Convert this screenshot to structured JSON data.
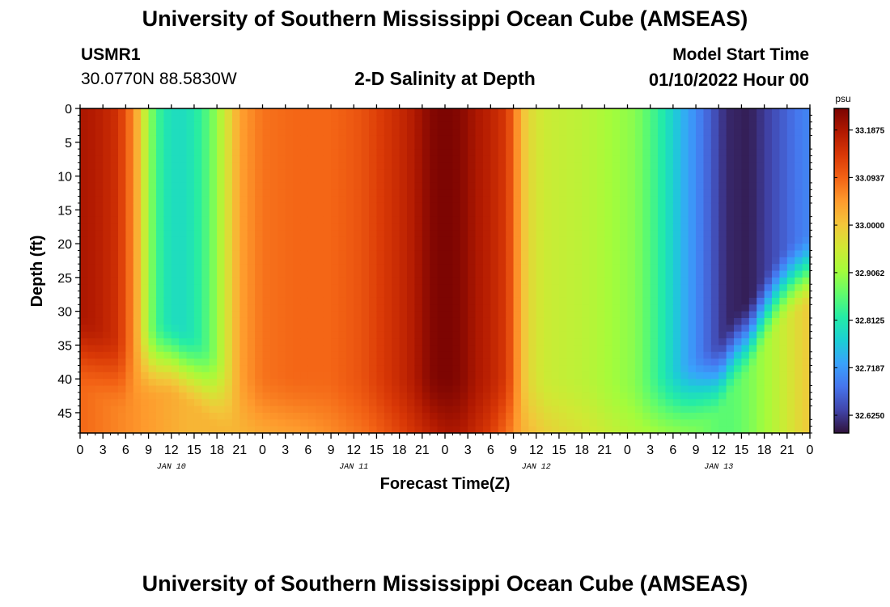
{
  "page": {
    "title": "University of Southern Mississippi Ocean Cube (AMSEAS)",
    "repeated_title": "University of Southern Mississippi Ocean Cube (AMSEAS)",
    "station_id": "USMR1",
    "station_coords": "30.0770N  88.5830W",
    "subtitle": "2-D Salinity at Depth",
    "start_label": "Model Start Time",
    "start_value": "01/10/2022 Hour 00"
  },
  "colors": {
    "frame": "#000000",
    "background": "#ffffff",
    "colormap": [
      "#30123b",
      "#4145ab",
      "#4675ed",
      "#39a2fc",
      "#1bcfd4",
      "#24eca6",
      "#61fc6c",
      "#a4fc3b",
      "#d1e834",
      "#f3c63a",
      "#fe9b2d",
      "#f36315",
      "#d93806",
      "#b11901",
      "#7a0402"
    ]
  },
  "chart_data": {
    "type": "heatmap",
    "title": "2-D Salinity at Depth",
    "xlabel": "Forecast Time(Z)",
    "ylabel": "Depth (ft)",
    "x_ticks": [
      "0",
      "3",
      "6",
      "9",
      "12",
      "15",
      "18",
      "21",
      "0",
      "3",
      "6",
      "9",
      "12",
      "15",
      "18",
      "21",
      "0",
      "3",
      "6",
      "9",
      "12",
      "15",
      "18",
      "21",
      "0",
      "3",
      "6",
      "9",
      "12",
      "15",
      "18",
      "21",
      "0"
    ],
    "x_hours": [
      0,
      3,
      6,
      9,
      12,
      15,
      18,
      21,
      24,
      27,
      30,
      33,
      36,
      39,
      42,
      45,
      48,
      51,
      54,
      57,
      60,
      63,
      66,
      69,
      72,
      75,
      78,
      81,
      84,
      87,
      90,
      93,
      96
    ],
    "xlim": [
      0,
      96
    ],
    "date_labels": [
      "JAN 10",
      "JAN 11",
      "JAN 12",
      "JAN 13"
    ],
    "date_label_hours": [
      12,
      36,
      60,
      84
    ],
    "y_ticks": [
      "0",
      "5",
      "10",
      "15",
      "20",
      "25",
      "30",
      "35",
      "40",
      "45"
    ],
    "y_values": [
      0,
      5,
      10,
      15,
      20,
      25,
      30,
      35,
      40,
      45
    ],
    "ylim": [
      0,
      48
    ],
    "colorbar": {
      "unit": "psu",
      "labels": [
        "33.1875",
        "33.0937",
        "33.0000",
        "32.9062",
        "32.8125",
        "32.7187",
        "32.6250"
      ],
      "values": [
        33.1875,
        33.0937,
        33.0,
        32.9062,
        32.8125,
        32.7187,
        32.625
      ],
      "vmin": 32.59,
      "vmax": 33.23
    },
    "surface_salinity": {
      "hours": [
        0,
        2,
        5,
        7,
        8,
        9,
        10,
        11,
        13,
        15,
        17,
        19,
        21,
        24,
        28,
        33,
        37,
        40,
        43,
        45,
        46,
        48,
        50,
        52,
        54,
        56,
        57,
        58,
        59,
        61,
        64,
        67,
        70,
        73,
        76,
        79,
        82,
        85,
        88,
        91,
        94,
        96
      ],
      "values": [
        33.19,
        33.18,
        33.15,
        33.06,
        32.99,
        32.9,
        32.85,
        32.81,
        32.79,
        32.81,
        32.86,
        32.95,
        33.04,
        33.08,
        33.09,
        33.09,
        33.11,
        33.14,
        33.17,
        33.2,
        33.22,
        33.23,
        33.22,
        33.19,
        33.17,
        33.14,
        33.09,
        33.02,
        32.98,
        32.95,
        32.94,
        32.93,
        32.91,
        32.89,
        32.83,
        32.75,
        32.68,
        32.61,
        32.6,
        32.64,
        32.68,
        32.7
      ]
    },
    "bottom_salinity": {
      "hours": [
        0,
        4,
        6,
        8,
        10,
        14,
        18,
        22,
        26,
        30,
        34,
        38,
        42,
        46,
        48,
        50,
        54,
        58,
        62,
        68,
        72,
        76,
        80,
        84,
        86,
        88,
        90,
        92,
        94,
        96
      ],
      "values": [
        33.09,
        33.07,
        33.06,
        33.05,
        33.04,
        33.02,
        33.02,
        33.02,
        33.03,
        33.04,
        33.06,
        33.08,
        33.12,
        33.16,
        33.18,
        33.18,
        33.13,
        33.03,
        32.99,
        32.96,
        32.94,
        32.92,
        32.89,
        32.86,
        32.86,
        32.88,
        32.91,
        32.94,
        32.97,
        33.0
      ]
    },
    "blend_depth_curve": {
      "hours": [
        0,
        6,
        8,
        12,
        15,
        18,
        22,
        26,
        36,
        40,
        44,
        48,
        54,
        60,
        66,
        72,
        76,
        80,
        84,
        86,
        88,
        90,
        92,
        94,
        96
      ],
      "depth_ft": [
        36,
        40,
        38,
        37,
        39,
        42,
        45,
        45,
        45,
        45,
        45,
        45,
        45,
        45,
        45,
        46,
        45,
        43,
        40,
        36,
        34,
        30,
        27,
        25,
        24
      ]
    }
  }
}
